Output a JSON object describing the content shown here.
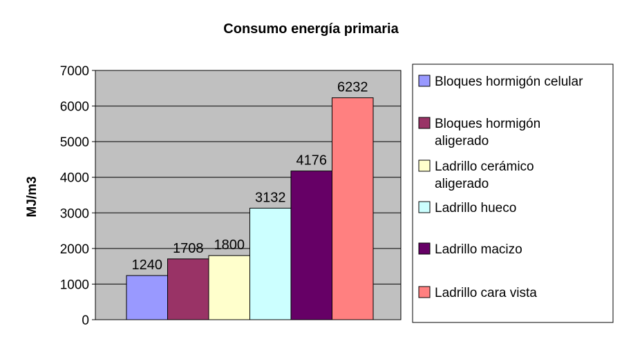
{
  "chart_data": {
    "type": "bar",
    "title": "Consumo energía primaria",
    "xlabel": "",
    "ylabel": "MJ/m3",
    "ylim": [
      0,
      7000
    ],
    "yticks": [
      0,
      1000,
      2000,
      3000,
      4000,
      5000,
      6000,
      7000
    ],
    "grid": true,
    "legend_position": "right",
    "plot_background": "#c0c0c0",
    "categories": [
      "Bloques hormigón celular",
      "Bloques hormigón aligerado",
      "Ladrillo cerámico aligerado",
      "Ladrillo hueco",
      "Ladrillo macizo",
      "Ladrillo cara vista"
    ],
    "legend_lines": [
      [
        "Bloques hormigón celular"
      ],
      [
        "Bloques hormigón",
        "aligerado"
      ],
      [
        "Ladrillo cerámico",
        "aligerado"
      ],
      [
        "Ladrillo hueco"
      ],
      [
        "Ladrillo macizo"
      ],
      [
        "Ladrillo cara vista"
      ]
    ],
    "values": [
      1240,
      1708,
      1800,
      3132,
      4176,
      6232
    ],
    "colors": [
      "#9999ff",
      "#993366",
      "#ffffcc",
      "#ccffff",
      "#660066",
      "#ff8080"
    ]
  }
}
